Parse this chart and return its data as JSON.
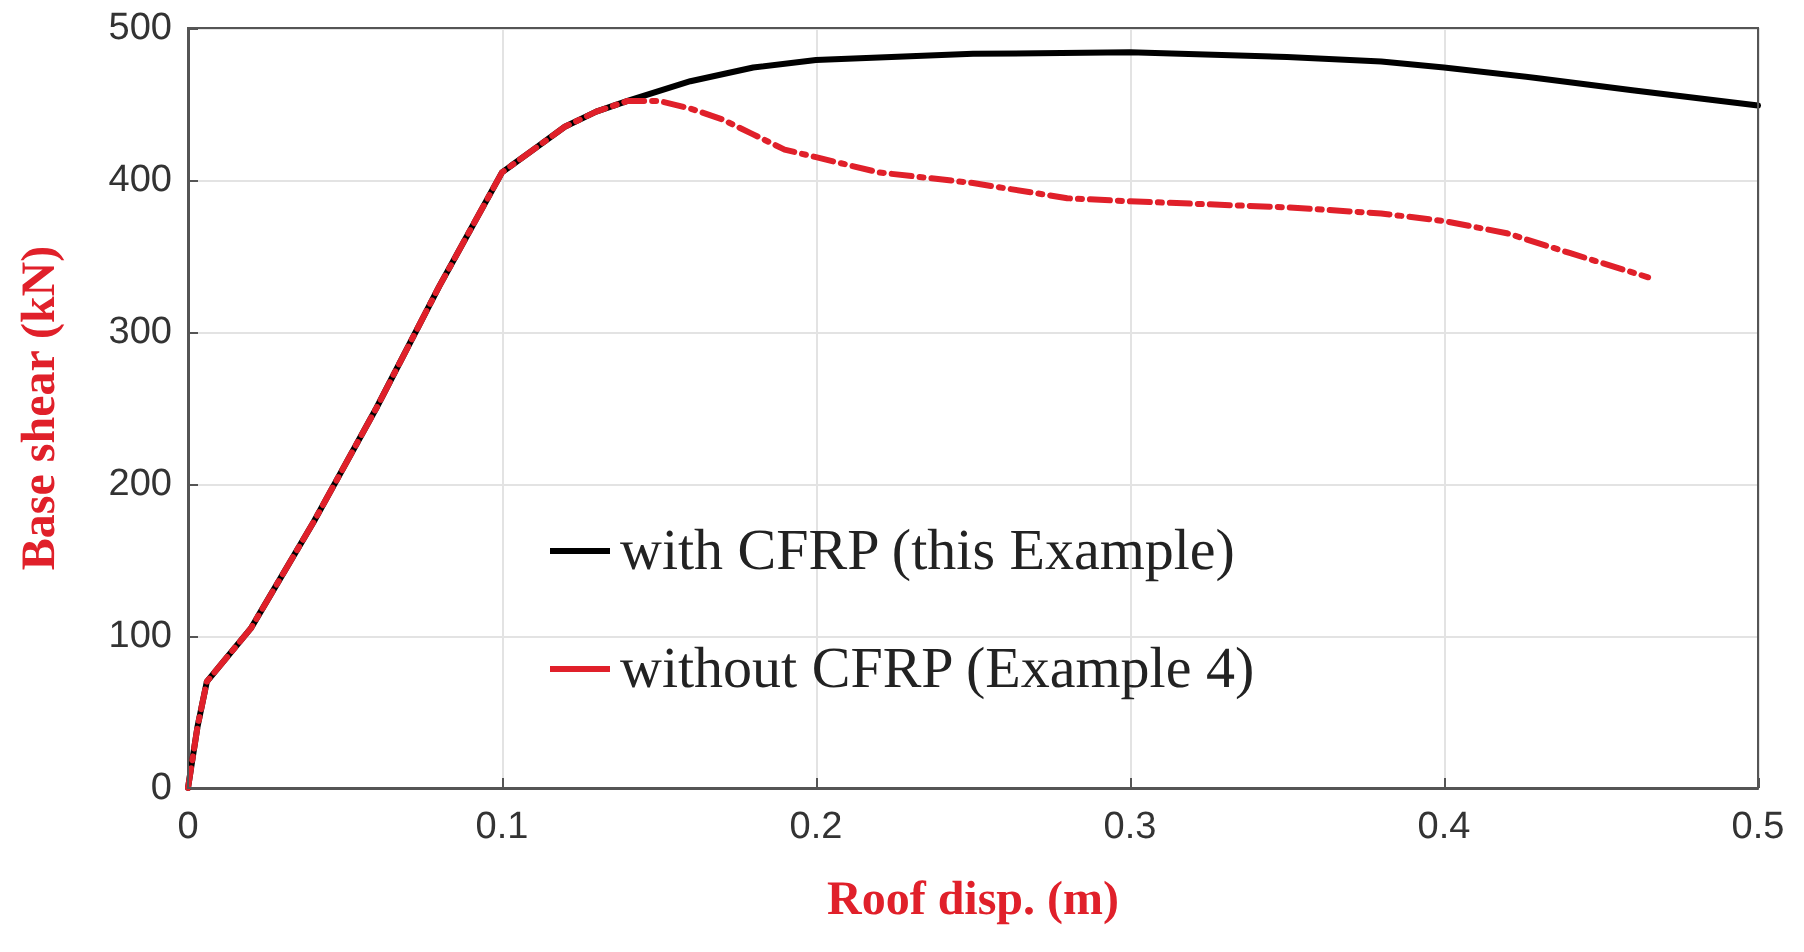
{
  "chart_data": {
    "type": "line",
    "xlabel": "Roof disp. (m)",
    "ylabel": "Base shear (kN)",
    "xlim": [
      0,
      0.5
    ],
    "xticks": [
      0,
      0.1,
      0.2,
      0.3,
      0.4,
      0.5
    ],
    "ylim": [
      0,
      500
    ],
    "yticks": [
      0,
      100,
      200,
      300,
      400,
      500
    ],
    "grid": true,
    "legend": "bottom",
    "marker": "none",
    "series": [
      {
        "name": "with CFRP (this Example)",
        "color": "#000000",
        "line_style": "solid",
        "x": [
          0,
          0.003,
          0.006,
          0.01,
          0.02,
          0.04,
          0.06,
          0.08,
          0.1,
          0.11,
          0.12,
          0.13,
          0.14,
          0.16,
          0.18,
          0.2,
          0.25,
          0.3,
          0.35,
          0.38,
          0.4,
          0.43,
          0.46,
          0.5
        ],
        "values": [
          0,
          40,
          70,
          80,
          105,
          175,
          250,
          330,
          405,
          420,
          435,
          445,
          452,
          465,
          474,
          479,
          483,
          484,
          481,
          478,
          474,
          467,
          459,
          449
        ]
      },
      {
        "name": "without CFRP (Example 4)",
        "color": "#e0202a",
        "line_style": "dashed",
        "x": [
          0,
          0.003,
          0.006,
          0.01,
          0.02,
          0.04,
          0.06,
          0.08,
          0.1,
          0.11,
          0.12,
          0.13,
          0.14,
          0.15,
          0.16,
          0.17,
          0.18,
          0.19,
          0.2,
          0.22,
          0.25,
          0.28,
          0.3,
          0.35,
          0.38,
          0.4,
          0.42,
          0.44,
          0.465
        ],
        "values": [
          0,
          40,
          70,
          80,
          105,
          175,
          250,
          330,
          405,
          420,
          435,
          445,
          452,
          452,
          447,
          440,
          430,
          420,
          415,
          405,
          398,
          388,
          386,
          382,
          378,
          373,
          365,
          352,
          336
        ]
      }
    ]
  }
}
